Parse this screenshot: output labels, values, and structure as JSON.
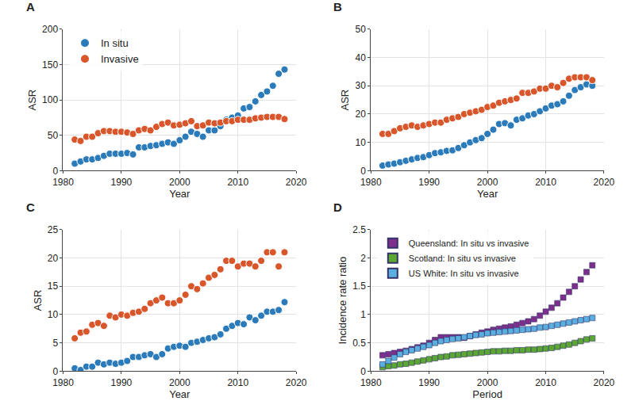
{
  "chart_data": [
    {
      "type": "scatter",
      "title": "A",
      "xlabel": "Year",
      "ylabel": "ASR",
      "marker": "circle",
      "grid": true,
      "legend": "upper left",
      "x": [
        1982,
        1983,
        1984,
        1985,
        1986,
        1987,
        1988,
        1989,
        1990,
        1991,
        1992,
        1993,
        1994,
        1995,
        1996,
        1997,
        1998,
        1999,
        2000,
        2001,
        2002,
        2003,
        2004,
        2005,
        2006,
        2007,
        2008,
        2009,
        2010,
        2011,
        2012,
        2013,
        2014,
        2015,
        2016,
        2017,
        2018
      ],
      "xlim": [
        1980,
        2020
      ],
      "xticks": [
        1980,
        1990,
        2000,
        2010,
        2020
      ],
      "ylim": [
        0,
        200
      ],
      "yticks": [
        0,
        50,
        100,
        150,
        200
      ],
      "series": [
        {
          "name": "In situ",
          "color": "#2b7bba",
          "values": [
            10,
            13,
            16,
            16,
            18,
            21,
            24,
            24,
            24,
            25,
            23,
            33,
            33,
            35,
            36,
            38,
            40,
            38,
            43,
            48,
            55,
            52,
            48,
            57,
            57,
            63,
            72,
            75,
            78,
            88,
            90,
            98,
            107,
            112,
            120,
            137,
            143
          ]
        },
        {
          "name": "Invasive",
          "color": "#d9562a",
          "values": [
            44,
            42,
            48,
            48,
            53,
            56,
            56,
            55,
            55,
            54,
            52,
            57,
            59,
            57,
            62,
            66,
            68,
            64,
            65,
            67,
            70,
            63,
            64,
            68,
            67,
            68,
            70,
            70,
            72,
            72,
            72,
            74,
            75,
            76,
            76,
            76,
            73
          ]
        }
      ]
    },
    {
      "type": "scatter",
      "title": "B",
      "xlabel": "Year",
      "ylabel": "ASR",
      "marker": "circle",
      "grid": true,
      "x": [
        1982,
        1983,
        1984,
        1985,
        1986,
        1987,
        1988,
        1989,
        1990,
        1991,
        1992,
        1993,
        1994,
        1995,
        1996,
        1997,
        1998,
        1999,
        2000,
        2001,
        2002,
        2003,
        2004,
        2005,
        2006,
        2007,
        2008,
        2009,
        2010,
        2011,
        2012,
        2013,
        2014,
        2015,
        2016,
        2017,
        2018
      ],
      "xlim": [
        1980,
        2020
      ],
      "xticks": [
        1980,
        1990,
        2000,
        2010,
        2020
      ],
      "ylim": [
        0,
        50
      ],
      "yticks": [
        0,
        10,
        20,
        30,
        40,
        50
      ],
      "series": [
        {
          "color": "#2b7bba",
          "values": [
            1.8,
            2.2,
            2.5,
            3.0,
            3.5,
            4.0,
            4.5,
            4.8,
            5.5,
            6.2,
            6.5,
            7.0,
            7.2,
            8.0,
            9.0,
            10.0,
            10.8,
            11.5,
            13.0,
            14.5,
            16.5,
            16.8,
            16.0,
            18.0,
            18.5,
            19.5,
            20.0,
            21.0,
            22.0,
            23.0,
            23.5,
            24.5,
            26.5,
            28.5,
            29.5,
            30.5,
            30.0
          ]
        },
        {
          "color": "#d9562a",
          "values": [
            13.0,
            13.0,
            14.0,
            15.0,
            15.5,
            16.0,
            15.5,
            16.0,
            16.5,
            17.0,
            17.0,
            18.0,
            18.5,
            19.0,
            20.0,
            20.5,
            21.0,
            21.5,
            22.5,
            23.0,
            24.0,
            24.5,
            25.0,
            25.5,
            27.5,
            27.5,
            28.0,
            29.0,
            29.0,
            30.0,
            29.5,
            31.0,
            32.5,
            33.0,
            33.0,
            33.0,
            32.0
          ]
        }
      ]
    },
    {
      "type": "scatter",
      "title": "C",
      "xlabel": "Year",
      "ylabel": "ASR",
      "marker": "circle",
      "grid": true,
      "x": [
        1982,
        1983,
        1984,
        1985,
        1986,
        1987,
        1988,
        1989,
        1990,
        1991,
        1992,
        1993,
        1994,
        1995,
        1996,
        1997,
        1998,
        1999,
        2000,
        2001,
        2002,
        2003,
        2004,
        2005,
        2006,
        2007,
        2008,
        2009,
        2010,
        2011,
        2012,
        2013,
        2014,
        2015,
        2016,
        2017,
        2018
      ],
      "xlim": [
        1980,
        2020
      ],
      "xticks": [
        1980,
        1990,
        2000,
        2010,
        2020
      ],
      "ylim": [
        0,
        25
      ],
      "yticks": [
        0,
        5,
        10,
        15,
        20,
        25
      ],
      "series": [
        {
          "color": "#2b7bba",
          "values": [
            0.5,
            0.2,
            0.8,
            0.8,
            1.5,
            1.2,
            1.5,
            1.3,
            1.5,
            1.8,
            2.5,
            2.5,
            2.8,
            3.0,
            2.5,
            3.0,
            4.0,
            4.3,
            4.5,
            4.3,
            5.0,
            5.2,
            5.5,
            5.8,
            6.0,
            6.5,
            7.5,
            8.0,
            8.5,
            8.3,
            9.5,
            9.0,
            9.8,
            10.5,
            10.5,
            10.8,
            12.2
          ]
        },
        {
          "color": "#d9562a",
          "values": [
            5.8,
            6.8,
            7.0,
            8.2,
            8.5,
            8.0,
            9.8,
            9.5,
            10.0,
            9.8,
            10.3,
            10.5,
            11.0,
            12.0,
            12.5,
            13.0,
            12.0,
            12.0,
            12.5,
            13.5,
            15.0,
            14.5,
            15.5,
            16.5,
            17.0,
            18.0,
            19.5,
            19.5,
            18.5,
            19.0,
            19.0,
            18.5,
            19.5,
            21.0,
            21.0,
            18.5,
            21.0
          ]
        }
      ]
    },
    {
      "type": "scatter",
      "title": "D",
      "xlabel": "Period",
      "ylabel": "Incidence rate ratio",
      "marker": "square",
      "grid": true,
      "legend": "upper left",
      "x": [
        1982,
        1983,
        1984,
        1985,
        1986,
        1987,
        1988,
        1989,
        1990,
        1991,
        1992,
        1993,
        1994,
        1995,
        1996,
        1997,
        1998,
        1999,
        2000,
        2001,
        2002,
        2003,
        2004,
        2005,
        2006,
        2007,
        2008,
        2009,
        2010,
        2011,
        2012,
        2013,
        2014,
        2015,
        2016,
        2017,
        2018
      ],
      "xlim": [
        1980,
        2020
      ],
      "xticks": [
        1980,
        1990,
        2000,
        2010,
        2020
      ],
      "ylim": [
        0,
        2.5
      ],
      "yticks": [
        0,
        0.5,
        1,
        1.5,
        2,
        2.5
      ],
      "series": [
        {
          "name": "Queensland: In situ vs invasive",
          "color": "#7e2f8e",
          "values": [
            0.28,
            0.3,
            0.32,
            0.34,
            0.36,
            0.39,
            0.42,
            0.45,
            0.5,
            0.55,
            0.6,
            0.6,
            0.6,
            0.6,
            0.59,
            0.62,
            0.65,
            0.68,
            0.7,
            0.73,
            0.75,
            0.77,
            0.79,
            0.82,
            0.85,
            0.88,
            0.92,
            0.98,
            1.05,
            1.12,
            1.2,
            1.3,
            1.4,
            1.5,
            1.62,
            1.75,
            1.87
          ]
        },
        {
          "name": "Scotland: In situ vs invasive",
          "color": "#5aa832",
          "values": [
            0.07,
            0.09,
            0.1,
            0.12,
            0.13,
            0.15,
            0.17,
            0.19,
            0.21,
            0.23,
            0.25,
            0.26,
            0.28,
            0.29,
            0.3,
            0.31,
            0.32,
            0.33,
            0.34,
            0.35,
            0.35,
            0.36,
            0.36,
            0.37,
            0.37,
            0.38,
            0.38,
            0.39,
            0.4,
            0.41,
            0.43,
            0.45,
            0.47,
            0.5,
            0.53,
            0.56,
            0.58
          ]
        },
        {
          "name": "US White: In situ vs invasive",
          "color": "#5aaee0",
          "values": [
            0.12,
            0.18,
            0.24,
            0.3,
            0.34,
            0.37,
            0.4,
            0.43,
            0.46,
            0.5,
            0.53,
            0.55,
            0.57,
            0.58,
            0.6,
            0.62,
            0.64,
            0.65,
            0.67,
            0.68,
            0.69,
            0.7,
            0.71,
            0.72,
            0.73,
            0.74,
            0.75,
            0.77,
            0.78,
            0.8,
            0.82,
            0.84,
            0.86,
            0.88,
            0.9,
            0.92,
            0.94
          ]
        }
      ]
    }
  ]
}
